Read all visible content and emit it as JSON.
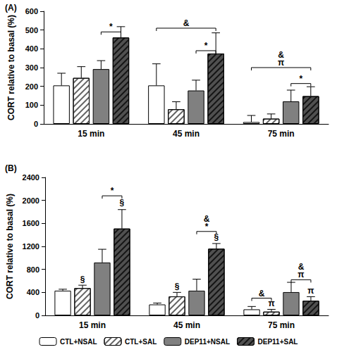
{
  "chart_data": [
    {
      "type": "bar",
      "title": "(A)",
      "y_label": "CORT relative to basal (%)",
      "categories": [
        "15 min",
        "45 min",
        "75 min"
      ],
      "ylim": [
        0,
        600
      ],
      "yticks": [
        0,
        100,
        200,
        300,
        400,
        500,
        600
      ],
      "grid": false,
      "series": [
        {
          "name": "CTL+NSAL",
          "color": "#ffffff",
          "values": [
            205,
            205,
            10
          ],
          "errors": [
            65,
            115,
            35
          ]
        },
        {
          "name": "CTL+SAL",
          "color": "#ffffff",
          "values": [
            245,
            78,
            28
          ],
          "errors": [
            60,
            40,
            25
          ]
        },
        {
          "name": "DEP11+NSAL",
          "color": "#808080",
          "values": [
            292,
            178,
            120
          ],
          "errors": [
            45,
            55,
            60
          ]
        },
        {
          "name": "DEP11+SAL",
          "color": "#505050",
          "values": [
            460,
            375,
            148
          ],
          "errors": [
            58,
            110,
            50
          ]
        }
      ],
      "annotations": [
        {
          "text": [
            "*"
          ],
          "category": "15 min",
          "series": [
            "DEP11+NSAL",
            "DEP11+SAL"
          ],
          "y": 490
        },
        {
          "text": [
            "*"
          ],
          "category": "45 min",
          "series": [
            "DEP11+NSAL",
            "DEP11+SAL"
          ],
          "y": 390
        },
        {
          "text": [
            "&"
          ],
          "category": "45 min",
          "series": [
            "CTL+NSAL",
            "DEP11+SAL"
          ],
          "y": 510
        },
        {
          "text": [
            "*"
          ],
          "category": "75 min",
          "series": [
            "DEP11+NSAL",
            "DEP11+SAL"
          ],
          "y": 215
        },
        {
          "text": [
            "&",
            "π"
          ],
          "category": "75 min",
          "series": [
            "CTL+NSAL",
            "DEP11+SAL"
          ],
          "y": 300
        }
      ]
    },
    {
      "type": "bar",
      "title": "(B)",
      "y_label": "CORT relative to basal (%)",
      "categories": [
        "15 min",
        "45 min",
        "75 min"
      ],
      "ylim": [
        0,
        2400
      ],
      "yticks": [
        0,
        400,
        800,
        1200,
        1600,
        2000,
        2400
      ],
      "grid": false,
      "legend": "bottom",
      "series": [
        {
          "name": "CTL+NSAL",
          "color": "#ffffff",
          "values": [
            430,
            190,
            105
          ],
          "errors": [
            25,
            25,
            50
          ]
        },
        {
          "name": "CTL+SAL",
          "color": "#ffffff",
          "values": [
            475,
            330,
            65
          ],
          "errors": [
            50,
            70,
            40
          ]
        },
        {
          "name": "DEP11+NSAL",
          "color": "#808080",
          "values": [
            920,
            430,
            405
          ],
          "errors": [
            230,
            200,
            170
          ]
        },
        {
          "name": "DEP11+SAL",
          "color": "#505050",
          "values": [
            1510,
            1160,
            255
          ],
          "errors": [
            330,
            90,
            70
          ]
        }
      ],
      "annotations": [
        {
          "text": [
            "§"
          ],
          "category": "15 min",
          "series": [
            "CTL+SAL"
          ],
          "y": 540
        },
        {
          "text": [
            "§"
          ],
          "category": "15 min",
          "series": [
            "DEP11+SAL"
          ],
          "y": 1870
        },
        {
          "text": [
            "*"
          ],
          "category": "15 min",
          "series": [
            "DEP11+NSAL",
            "DEP11+SAL"
          ],
          "y": 2080
        },
        {
          "text": [
            "§"
          ],
          "category": "45 min",
          "series": [
            "CTL+SAL"
          ],
          "y": 420
        },
        {
          "text": [
            "§"
          ],
          "category": "45 min",
          "series": [
            "DEP11+SAL"
          ],
          "y": 1270
        },
        {
          "text": [
            "&",
            "*"
          ],
          "category": "45 min",
          "series": [
            "DEP11+NSAL",
            "DEP11+SAL"
          ],
          "y": 1460
        },
        {
          "text": [
            "π"
          ],
          "category": "75 min",
          "series": [
            "CTL+SAL"
          ],
          "y": 125
        },
        {
          "text": [
            "&"
          ],
          "category": "75 min",
          "series": [
            "CTL+NSAL",
            "CTL+SAL"
          ],
          "y": 300
        },
        {
          "text": [
            "π"
          ],
          "category": "75 min",
          "series": [
            "DEP11+SAL"
          ],
          "y": 345
        },
        {
          "text": [
            "&",
            "π"
          ],
          "category": "75 min",
          "series": [
            "DEP11+NSAL",
            "DEP11+SAL"
          ],
          "y": 620
        }
      ]
    }
  ]
}
